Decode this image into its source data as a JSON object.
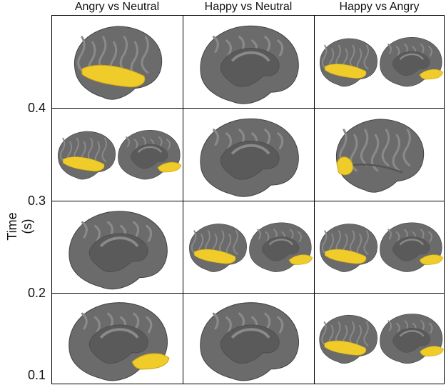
{
  "columns": [
    "Angry vs Neutral",
    "Happy vs Neutral",
    "Happy vs Angry"
  ],
  "y_axis": {
    "label": "Time (s)",
    "ticks": [
      "0.4",
      "0.3",
      "0.2",
      "0.1"
    ]
  },
  "colors": {
    "brain_base": "#6b6b6b",
    "brain_gyri": "#8a8a8a",
    "brain_medial_wall": "#5a5a5a",
    "activation": "#f0cc2a",
    "grid_line": "#000000"
  },
  "panels": [
    [
      {
        "view": "lateral-left",
        "activation": true
      },
      {
        "view": "medial",
        "activation": false
      },
      {
        "view": "pair",
        "activation": true
      }
    ],
    [
      {
        "view": "pair",
        "activation": true
      },
      {
        "view": "medial",
        "activation": false
      },
      {
        "view": "lateral-right",
        "activation": true
      }
    ],
    [
      {
        "view": "medial",
        "activation": false
      },
      {
        "view": "pair",
        "activation": true
      },
      {
        "view": "pair",
        "activation": true
      }
    ],
    [
      {
        "view": "medial",
        "activation": true
      },
      {
        "view": "medial",
        "activation": false
      },
      {
        "view": "pair",
        "activation": true
      }
    ]
  ]
}
